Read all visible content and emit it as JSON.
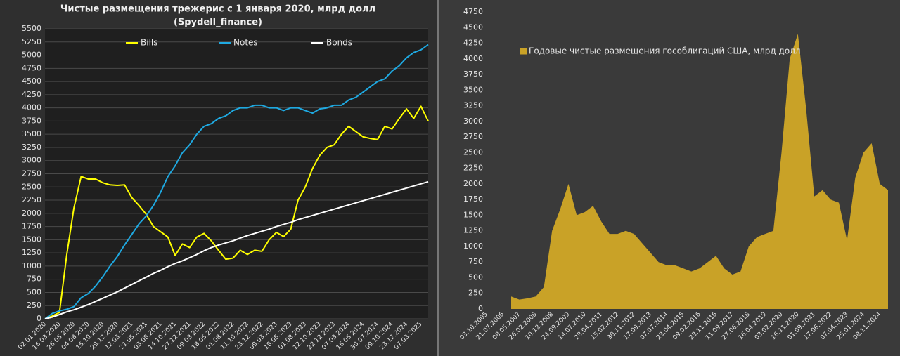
{
  "chart_data": [
    {
      "type": "line",
      "title": "Чистые размещения трежерис с 1 января 2020, млрд долл",
      "subtitle": "(Spydell_finance)",
      "categories": [
        "02.01.2020",
        null,
        "16.03.2020",
        null,
        "26.05.2020",
        null,
        "04.08.2020",
        null,
        "15.10.2020",
        null,
        "29.12.2020",
        null,
        "12.03.2021",
        null,
        "21.05.2021",
        null,
        "03.08.2021",
        null,
        "14.10.2021",
        null,
        "27.12.2021",
        null,
        "09.03.2022",
        null,
        "18.05.2022",
        null,
        "01.08.2022",
        null,
        "11.10.2022",
        null,
        "23.12.2022",
        null,
        "09.03.2023",
        null,
        "18.05.2023",
        null,
        "01.08.2023",
        null,
        "12.10.2023",
        null,
        "22.12.2023",
        null,
        "07.03.2024",
        null,
        "16.05.2024",
        null,
        "30.07.2024",
        null,
        "09.10.2024",
        null,
        "23.12.2024",
        null,
        "07.03.2025",
        null
      ],
      "series": [
        {
          "name": "Bills",
          "color": "#ffff00",
          "values": [
            0,
            50,
            120,
            1200,
            2100,
            2700,
            2650,
            2650,
            2580,
            2540,
            2530,
            2540,
            2300,
            2150,
            1980,
            1750,
            1650,
            1550,
            1200,
            1420,
            1350,
            1550,
            1620,
            1480,
            1300,
            1130,
            1150,
            1300,
            1220,
            1300,
            1280,
            1500,
            1640,
            1560,
            1700,
            2250,
            2500,
            2850,
            3100,
            3250,
            3300,
            3500,
            3650,
            3550,
            3450,
            3420,
            3400,
            3650,
            3600,
            3800,
            3980,
            3800,
            4030,
            3750
          ]
        },
        {
          "name": "Notes",
          "color": "#1fa9e1",
          "values": [
            0,
            100,
            150,
            180,
            230,
            400,
            480,
            620,
            800,
            1000,
            1180,
            1400,
            1600,
            1800,
            1950,
            2150,
            2400,
            2700,
            2900,
            3150,
            3300,
            3500,
            3650,
            3700,
            3800,
            3850,
            3950,
            4000,
            4000,
            4050,
            4050,
            4000,
            4000,
            3950,
            4000,
            4000,
            3950,
            3900,
            3980,
            4000,
            4050,
            4050,
            4150,
            4200,
            4300,
            4400,
            4500,
            4550,
            4700,
            4800,
            4950,
            5050,
            5100,
            5200
          ]
        },
        {
          "name": "Bonds",
          "color": "#ffffff",
          "values": [
            0,
            30,
            80,
            130,
            170,
            220,
            270,
            330,
            390,
            450,
            510,
            580,
            650,
            720,
            790,
            860,
            920,
            990,
            1050,
            1100,
            1160,
            1220,
            1290,
            1350,
            1400,
            1440,
            1480,
            1530,
            1580,
            1620,
            1660,
            1700,
            1750,
            1790,
            1830,
            1880,
            1920,
            1960,
            2000,
            2040,
            2080,
            2120,
            2160,
            2200,
            2240,
            2280,
            2320,
            2360,
            2400,
            2440,
            2480,
            2520,
            2560,
            2600
          ]
        }
      ],
      "ylim": [
        0,
        5500
      ],
      "yticks": [
        0,
        250,
        500,
        750,
        1000,
        1250,
        1500,
        1750,
        2000,
        2250,
        2500,
        2750,
        3000,
        3250,
        3500,
        3750,
        4000,
        4250,
        4500,
        4750,
        5000,
        5250,
        5500
      ],
      "grid": true,
      "legend": "top"
    },
    {
      "type": "area",
      "categories": [
        "03.10.2005",
        null,
        "21.07.2006",
        null,
        "08.05.2007",
        null,
        "26.02.2008",
        null,
        "10.12.2008",
        null,
        "24.09.2009",
        null,
        "14.07.2010",
        null,
        "28.04.2011",
        null,
        "15.02.2012",
        null,
        "30.11.2012",
        null,
        "17.09.2013",
        null,
        "07.07.2014",
        null,
        "23.04.2015",
        null,
        "09.02.2016",
        null,
        "23.11.2016",
        null,
        "11.09.2017",
        null,
        "27.06.2018",
        null,
        "16.04.2019",
        null,
        "03.02.2020",
        null,
        "16.11.2020",
        null,
        "01.09.2021",
        null,
        "17.06.2022",
        null,
        "07.04.2023",
        null,
        "25.01.2024",
        null,
        "08.11.2024",
        null
      ],
      "series": [
        {
          "name": "Годовые чистые размещения гособлигаций США, млрд долл",
          "color": "#c9a227",
          "values": [
            null,
            null,
            null,
            200,
            150,
            170,
            200,
            350,
            1250,
            1600,
            2000,
            1500,
            1550,
            1650,
            1400,
            1200,
            1200,
            1250,
            1200,
            1050,
            900,
            750,
            700,
            700,
            650,
            600,
            650,
            750,
            850,
            650,
            550,
            600,
            1000,
            1150,
            1200,
            1250,
            2500,
            4000,
            4400,
            3200,
            1800,
            1900,
            1750,
            1700,
            1100,
            2100,
            2500,
            2650,
            2000,
            1900
          ]
        }
      ],
      "ylim": [
        0,
        4750
      ],
      "yticks": [
        0,
        250,
        500,
        750,
        1000,
        1250,
        1500,
        1750,
        2000,
        2250,
        2500,
        2750,
        3000,
        3250,
        3500,
        3750,
        4000,
        4250,
        4500,
        4750
      ],
      "grid": false,
      "legend": "top-left"
    }
  ]
}
